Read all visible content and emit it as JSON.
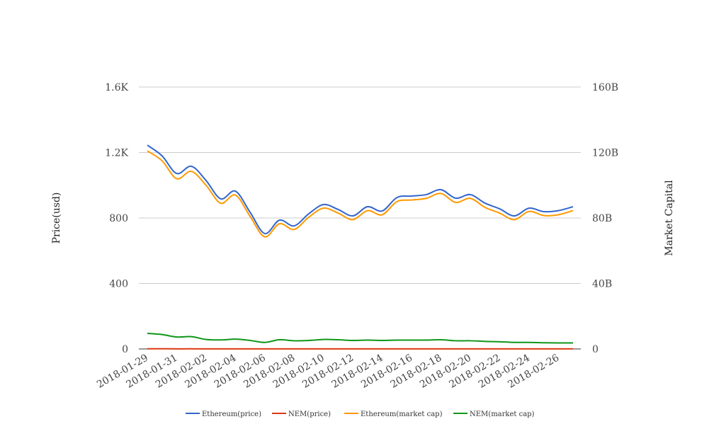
{
  "chart_data": {
    "type": "line",
    "title": "",
    "xlabel": "",
    "ylabel": "Price(usd)",
    "y2label": "Market Capital",
    "ylim": [
      0,
      1600
    ],
    "y2lim": [
      0,
      160
    ],
    "yticks": [
      "0",
      "400",
      "800",
      "1.2K",
      "1.6K"
    ],
    "y2ticks": [
      "0",
      "40B",
      "80B",
      "120B",
      "160B"
    ],
    "grid": true,
    "legend_position": "bottom",
    "x": [
      "2018-01-29",
      "2018-01-30",
      "2018-01-31",
      "2018-02-01",
      "2018-02-02",
      "2018-02-03",
      "2018-02-04",
      "2018-02-05",
      "2018-02-06",
      "2018-02-07",
      "2018-02-08",
      "2018-02-09",
      "2018-02-10",
      "2018-02-11",
      "2018-02-12",
      "2018-02-13",
      "2018-02-14",
      "2018-02-15",
      "2018-02-16",
      "2018-02-17",
      "2018-02-18",
      "2018-02-19",
      "2018-02-20",
      "2018-02-21",
      "2018-02-22",
      "2018-02-23",
      "2018-02-24",
      "2018-02-25",
      "2018-02-26",
      "2018-02-27"
    ],
    "xtick_labels": [
      "2018-01-29",
      "2018-01-31",
      "2018-02-02",
      "2018-02-04",
      "2018-02-06",
      "2018-02-08",
      "2018-02-10",
      "2018-02-12",
      "2018-02-14",
      "2018-02-16",
      "2018-02-18",
      "2018-02-20",
      "2018-02-22",
      "2018-02-24",
      "2018-02-26"
    ],
    "series": [
      {
        "name": "Ethereum(price)",
        "axis": "left",
        "color": "#3366cc",
        "values": [
          1245,
          1180,
          1072,
          1116,
          1029,
          917,
          964,
          835,
          705,
          787,
          752,
          826,
          882,
          852,
          813,
          869,
          843,
          925,
          934,
          943,
          973,
          921,
          943,
          891,
          856,
          813,
          860,
          839,
          845,
          869
        ]
      },
      {
        "name": "NEM(price)",
        "axis": "left",
        "color": "#dc3912",
        "values": [
          1.0,
          0.95,
          0.8,
          0.82,
          0.65,
          0.6,
          0.65,
          0.57,
          0.45,
          0.62,
          0.55,
          0.57,
          0.63,
          0.61,
          0.57,
          0.59,
          0.57,
          0.59,
          0.59,
          0.59,
          0.61,
          0.55,
          0.55,
          0.5,
          0.48,
          0.44,
          0.44,
          0.42,
          0.4,
          0.4
        ]
      },
      {
        "name": "Ethereum(market cap)",
        "axis": "right",
        "color": "#ff9900",
        "values": [
          121,
          115,
          104,
          108.5,
          100,
          89,
          94,
          81,
          68.5,
          76.5,
          73,
          80.5,
          86,
          83,
          79,
          84.5,
          82,
          90,
          91,
          92,
          95,
          89.5,
          92,
          86.5,
          83,
          79,
          84,
          81.5,
          82,
          84.5
        ]
      },
      {
        "name": "NEM(market cap)",
        "axis": "right",
        "color": "#109618",
        "values": [
          9.5,
          8.8,
          7.3,
          7.5,
          5.8,
          5.5,
          6.0,
          5.2,
          4.0,
          5.6,
          5.0,
          5.2,
          5.8,
          5.6,
          5.2,
          5.4,
          5.2,
          5.4,
          5.4,
          5.4,
          5.6,
          5.0,
          5.0,
          4.6,
          4.4,
          4.0,
          4.0,
          3.8,
          3.7,
          3.7
        ]
      }
    ]
  }
}
